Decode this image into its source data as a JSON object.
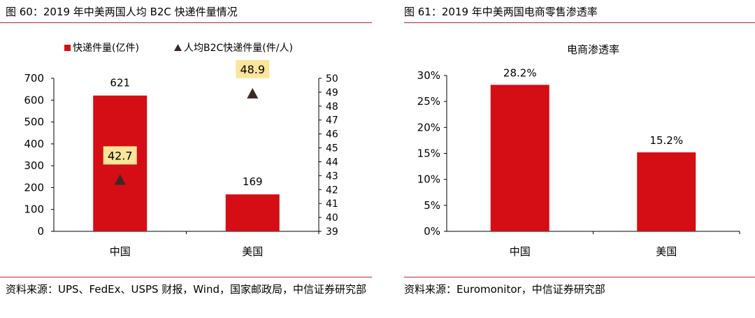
{
  "colors": {
    "bar": "#d40e14",
    "marker": "#3a2a26",
    "label_bg": "#fbe59b",
    "rule": "#c0272d"
  },
  "left": {
    "fig_title": "图 60：2019 年中美两国人均 B2C 快递件量情况",
    "source": "资料来源：UPS、FedEx、USPS 财报，Wind，国家邮政局，中信证券研究部"
  },
  "right": {
    "fig_title": "图 61：2019 年中美两国电商零售渗透率",
    "source": "资料来源：Euromonitor，中信证券研究部"
  },
  "chart_data": [
    {
      "type": "bar",
      "categories": [
        "中国",
        "美国"
      ],
      "series": [
        {
          "name": "快递件量(亿件)",
          "type": "bar",
          "axis": "left",
          "values": [
            621,
            169
          ]
        },
        {
          "name": "人均B2C快递件量(件/人)",
          "type": "scatter",
          "marker": "triangle",
          "axis": "right",
          "values": [
            42.7,
            48.9
          ]
        }
      ],
      "bar_labels": [
        "621",
        "169"
      ],
      "marker_labels": [
        "42.7",
        "48.9"
      ],
      "ylim": [
        0,
        700
      ],
      "yticks": [
        0,
        100,
        200,
        300,
        400,
        500,
        600,
        700
      ],
      "y2lim": [
        39,
        50
      ],
      "y2ticks": [
        39,
        40,
        41,
        42,
        43,
        44,
        45,
        46,
        47,
        48,
        49,
        50
      ],
      "legend": "top",
      "grid": false
    },
    {
      "type": "bar",
      "title": "电商渗透率",
      "categories": [
        "中国",
        "美国"
      ],
      "values": [
        28.2,
        15.2
      ],
      "value_labels": [
        "28.2%",
        "15.2%"
      ],
      "ylim": [
        0,
        30
      ],
      "yticks": [
        0,
        5,
        10,
        15,
        20,
        25,
        30
      ],
      "ytick_labels": [
        "0%",
        "5%",
        "10%",
        "15%",
        "20%",
        "25%",
        "30%"
      ],
      "grid": false
    }
  ]
}
